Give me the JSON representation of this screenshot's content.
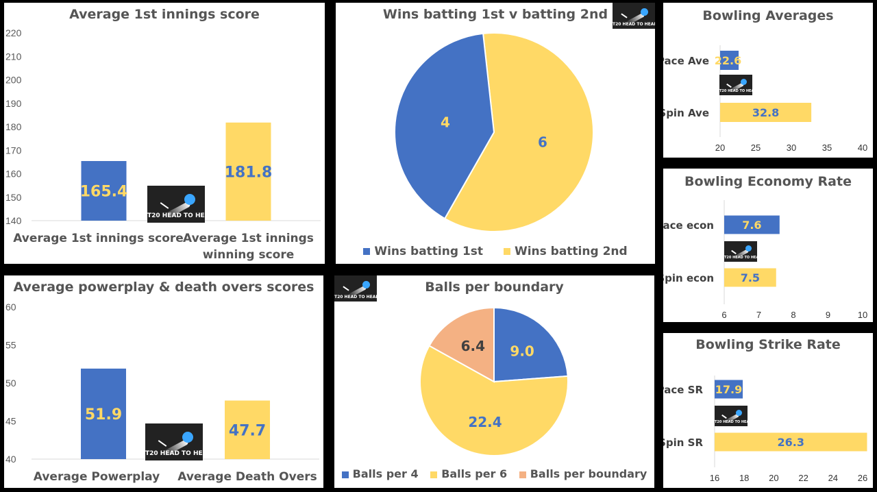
{
  "logo_text": "T20 HEAD TO HEAD",
  "colors": {
    "blue": "#4472c4",
    "yellow": "#ffd966",
    "peach": "#f4b183",
    "label_blue": "#4472c4",
    "label_yellow": "#ffd966",
    "axis_text": "#595959"
  },
  "chart_data": [
    {
      "id": "first-innings",
      "type": "bar",
      "title": "Average 1st innings score",
      "categories": [
        "Average 1st innings score",
        "Average 1st innings winning score"
      ],
      "values": [
        165.4,
        181.8
      ],
      "value_labels": [
        "165.4",
        "181.8"
      ],
      "ylim": [
        140,
        220
      ],
      "yticks": [
        140,
        150,
        160,
        170,
        180,
        190,
        200,
        210,
        220
      ]
    },
    {
      "id": "wins",
      "type": "pie",
      "title": "Wins batting 1st v batting 2nd",
      "labels": [
        "Wins batting 1st",
        "Wins batting 2nd"
      ],
      "values": [
        4,
        6
      ],
      "value_labels": [
        "4",
        "6"
      ]
    },
    {
      "id": "bowling-ave",
      "type": "bar",
      "orientation": "horizontal",
      "title": "Bowling Averages",
      "categories": [
        "Pace Ave",
        "Spin Ave"
      ],
      "values": [
        22.6,
        32.8
      ],
      "value_labels": [
        "22.6",
        "32.8"
      ],
      "xlim": [
        20,
        40
      ],
      "xticks": [
        20,
        25,
        30,
        35,
        40
      ]
    },
    {
      "id": "economy",
      "type": "bar",
      "orientation": "horizontal",
      "title": "Bowling Economy Rate",
      "categories": [
        "Pace econ",
        "Spin econ"
      ],
      "values": [
        7.6,
        7.5
      ],
      "value_labels": [
        "7.6",
        "7.5"
      ],
      "xlim": [
        6,
        10
      ],
      "xticks": [
        6,
        7,
        8,
        9,
        10
      ]
    },
    {
      "id": "powerplay",
      "type": "bar",
      "title": "Average powerplay & death overs scores",
      "categories": [
        "Average Powerplay",
        "Average Death Overs"
      ],
      "values": [
        51.9,
        47.7
      ],
      "value_labels": [
        "51.9",
        "47.7"
      ],
      "ylim": [
        40,
        60
      ],
      "yticks": [
        40,
        45,
        50,
        55,
        60
      ]
    },
    {
      "id": "boundary",
      "type": "pie",
      "title": "Balls per boundary",
      "labels": [
        "Balls per 4",
        "Balls per 6",
        "Balls per boundary"
      ],
      "values": [
        9.0,
        22.4,
        6.4
      ],
      "value_labels": [
        "9.0",
        "22.4",
        "6.4"
      ]
    },
    {
      "id": "strike-rate",
      "type": "bar",
      "orientation": "horizontal",
      "title": "Bowling Strike Rate",
      "categories": [
        "Pace SR",
        "Spin SR"
      ],
      "values": [
        17.9,
        26.3
      ],
      "value_labels": [
        "17.9",
        "26.3"
      ],
      "xlim": [
        16,
        26
      ],
      "xticks": [
        16,
        18,
        20,
        22,
        24,
        26
      ]
    }
  ]
}
